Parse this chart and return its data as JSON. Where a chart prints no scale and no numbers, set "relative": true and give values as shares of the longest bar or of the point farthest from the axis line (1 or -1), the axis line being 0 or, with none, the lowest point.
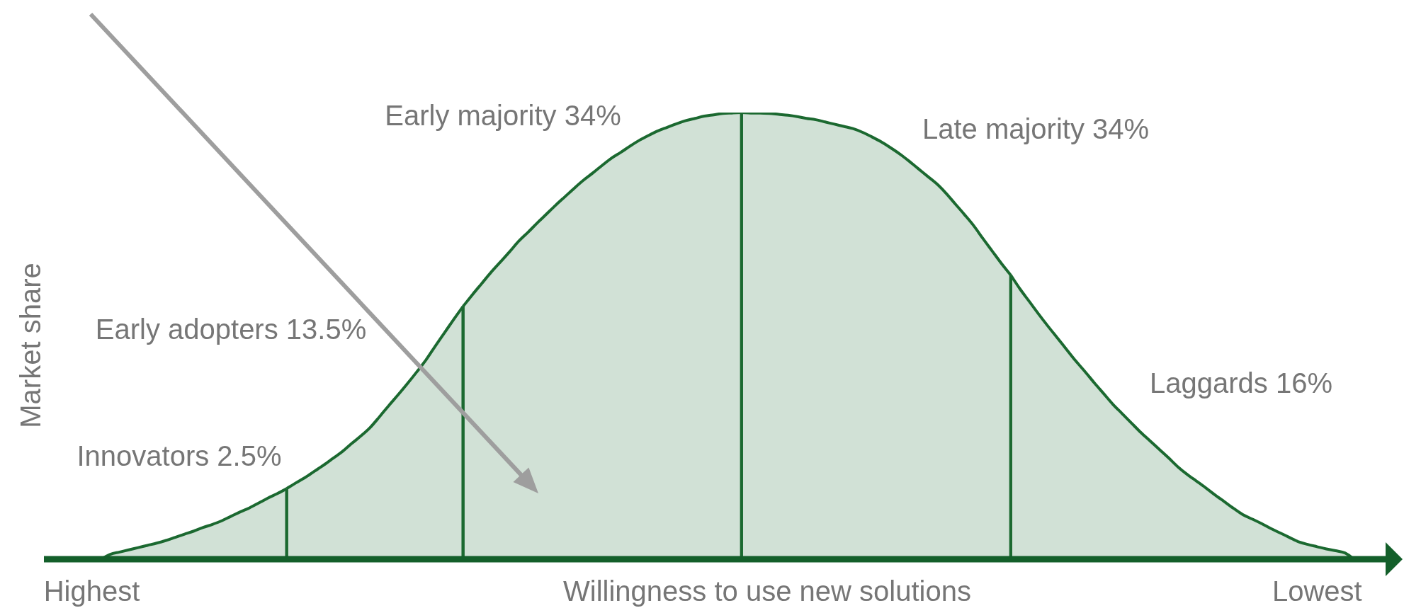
{
  "chart_data": {
    "type": "area",
    "relative": true,
    "xlabel": "Willingness to use new solutions",
    "ylabel": "Market share",
    "categories": [
      null,
      null,
      null,
      null,
      null,
      "Highest",
      null,
      null,
      null,
      null,
      null,
      null,
      null,
      null,
      null,
      null,
      null,
      null,
      null,
      null,
      null,
      null,
      null,
      null,
      null,
      null,
      null,
      null,
      null,
      null,
      null,
      null,
      null,
      null,
      null,
      null,
      null,
      null,
      null,
      null,
      null,
      null,
      null,
      null,
      null,
      null,
      null,
      null,
      null,
      null,
      null,
      null,
      null,
      null,
      null,
      null,
      null,
      null,
      null,
      null,
      null,
      null,
      null,
      null,
      null,
      null,
      null,
      null,
      null,
      null,
      null,
      null,
      null,
      null,
      null,
      null,
      null,
      null,
      null,
      null,
      null,
      null,
      null,
      null,
      null,
      null,
      null,
      null,
      null,
      null,
      null,
      null,
      null,
      null,
      null,
      null,
      null,
      null,
      null,
      null,
      null,
      null,
      null,
      null,
      null,
      null,
      null,
      null,
      null,
      null,
      null,
      null,
      null,
      null,
      null,
      null,
      null,
      null,
      null,
      null,
      null,
      null,
      null,
      null,
      null,
      null,
      null,
      null,
      null,
      null,
      null,
      null,
      null,
      null,
      null,
      null,
      null,
      "Lowest",
      null,
      null,
      null,
      null,
      null,
      null,
      null
    ],
    "series": [
      {
        "color": "#1b6930",
        "values": [
          null,
          null,
          null,
          null,
          null,
          null,
          0,
          0.011,
          0.016,
          0.021,
          0.026,
          0.031,
          0.036,
          0.042,
          0.049,
          0.056,
          0.063,
          0.071,
          0.078,
          0.086,
          0.096,
          0.106,
          0.115,
          0.126,
          0.137,
          0.147,
          0.158,
          null,
          null,
          null,
          null,
          null,
          null,
          null,
          null,
          null,
          null,
          null,
          null,
          null,
          null,
          null,
          null,
          null,
          null,
          null,
          null,
          null,
          null,
          null,
          null,
          null,
          null,
          null,
          null,
          null,
          null,
          null,
          null,
          null,
          null,
          null,
          null,
          null,
          null,
          null,
          null,
          null,
          null,
          null,
          null,
          null,
          null,
          null,
          null,
          null,
          null,
          null,
          null,
          null,
          null,
          null,
          null,
          null,
          null,
          null,
          null,
          null,
          null,
          null,
          null,
          null,
          null,
          null,
          null,
          null,
          null,
          null,
          null,
          null,
          null,
          null,
          null,
          null,
          null,
          null,
          null,
          null,
          null,
          null,
          null,
          null,
          null,
          null,
          null,
          null,
          null,
          null,
          null,
          null,
          null,
          null,
          null,
          null,
          null,
          null,
          null,
          null,
          null,
          null,
          null,
          null,
          null,
          null,
          null,
          null,
          null,
          null,
          null,
          null,
          null,
          null,
          null,
          null,
          null
        ]
      },
      {
        "color": "#1b6930",
        "values": [
          null,
          null,
          null,
          null,
          null,
          null,
          null,
          null,
          null,
          null,
          null,
          null,
          null,
          null,
          null,
          null,
          null,
          null,
          null,
          null,
          null,
          null,
          null,
          null,
          null,
          null,
          0.158,
          0.171,
          0.183,
          0.197,
          0.211,
          0.226,
          0.241,
          0.259,
          0.276,
          0.295,
          0.319,
          0.344,
          0.368,
          0.393,
          0.419,
          0.446,
          0.477,
          0.507,
          0.537,
          0.566,
          null,
          null,
          null,
          null,
          null,
          null,
          null,
          null,
          null,
          null,
          null,
          null,
          null,
          null,
          null,
          null,
          null,
          null,
          null,
          null,
          null,
          null,
          null,
          null,
          null,
          null,
          null,
          null,
          null,
          null,
          null,
          null,
          null,
          null,
          null,
          null,
          null,
          null,
          null,
          null,
          null,
          null,
          null,
          null,
          null,
          null,
          null,
          null,
          null,
          null,
          null,
          null,
          null,
          null,
          null,
          null,
          null,
          null,
          null,
          null,
          null,
          null,
          null,
          null,
          null,
          null,
          null,
          null,
          null,
          null,
          null,
          null,
          null,
          null,
          null,
          null,
          null,
          null,
          null,
          null,
          null,
          null,
          null,
          null,
          null,
          null,
          null,
          null,
          null,
          null,
          null,
          null,
          null,
          null,
          null,
          null,
          null,
          null,
          null
        ]
      },
      {
        "color": "#1b6930",
        "values": [
          null,
          null,
          null,
          null,
          null,
          null,
          null,
          null,
          null,
          null,
          null,
          null,
          null,
          null,
          null,
          null,
          null,
          null,
          null,
          null,
          null,
          null,
          null,
          null,
          null,
          null,
          null,
          null,
          null,
          null,
          null,
          null,
          null,
          null,
          null,
          null,
          null,
          null,
          null,
          null,
          null,
          null,
          null,
          null,
          null,
          0.566,
          0.592,
          0.617,
          0.642,
          0.665,
          0.688,
          0.712,
          0.732,
          0.753,
          0.773,
          0.793,
          0.812,
          0.831,
          0.849,
          0.865,
          0.882,
          0.898,
          0.911,
          0.925,
          0.938,
          0.949,
          0.959,
          0.967,
          0.975,
          0.982,
          0.987,
          0.992,
          0.995,
          0.998,
          0.999,
          1,
          null,
          null,
          null,
          null,
          null,
          null,
          null,
          null,
          null,
          null,
          null,
          null,
          null,
          null,
          null,
          null,
          null,
          null,
          null,
          null,
          null,
          null,
          null,
          null,
          null,
          null,
          null,
          null,
          null,
          null,
          null,
          null,
          null,
          null,
          null,
          null,
          null,
          null,
          null,
          null,
          null,
          null,
          null,
          null,
          null,
          null,
          null,
          null,
          null,
          null,
          null,
          null,
          null,
          null,
          null,
          null,
          null,
          null,
          null,
          null,
          null,
          null,
          null,
          null,
          null,
          null,
          null,
          null,
          null
        ]
      },
      {
        "color": "#1b6930",
        "values": [
          null,
          null,
          null,
          null,
          null,
          null,
          null,
          null,
          null,
          null,
          null,
          null,
          null,
          null,
          null,
          null,
          null,
          null,
          null,
          null,
          null,
          null,
          null,
          null,
          null,
          null,
          null,
          null,
          null,
          null,
          null,
          null,
          null,
          null,
          null,
          null,
          null,
          null,
          null,
          null,
          null,
          null,
          null,
          null,
          null,
          null,
          null,
          null,
          null,
          null,
          null,
          null,
          null,
          null,
          null,
          null,
          null,
          null,
          null,
          null,
          null,
          null,
          null,
          null,
          null,
          null,
          null,
          null,
          null,
          null,
          null,
          null,
          null,
          null,
          null,
          1,
          0.999,
          0.999,
          0.998,
          0.996,
          0.994,
          0.991,
          0.987,
          0.984,
          0.979,
          0.974,
          0.969,
          0.964,
          0.956,
          0.946,
          0.935,
          0.922,
          0.908,
          0.892,
          0.875,
          0.858,
          0.841,
          0.82,
          0.796,
          0.772,
          0.747,
          0.718,
          0.69,
          0.662,
          0.636,
          null,
          null,
          null,
          null,
          null,
          null,
          null,
          null,
          null,
          null,
          null,
          null,
          null,
          null,
          null,
          null,
          null,
          null,
          null,
          null,
          null,
          null,
          null,
          null,
          null,
          null,
          null,
          null,
          null,
          null,
          null,
          null,
          null,
          null,
          null,
          null,
          null,
          null,
          null,
          null
        ]
      },
      {
        "color": "#1b6930",
        "values": [
          null,
          null,
          null,
          null,
          null,
          null,
          null,
          null,
          null,
          null,
          null,
          null,
          null,
          null,
          null,
          null,
          null,
          null,
          null,
          null,
          null,
          null,
          null,
          null,
          null,
          null,
          null,
          null,
          null,
          null,
          null,
          null,
          null,
          null,
          null,
          null,
          null,
          null,
          null,
          null,
          null,
          null,
          null,
          null,
          null,
          null,
          null,
          null,
          null,
          null,
          null,
          null,
          null,
          null,
          null,
          null,
          null,
          null,
          null,
          null,
          null,
          null,
          null,
          null,
          null,
          null,
          null,
          null,
          null,
          null,
          null,
          null,
          null,
          null,
          null,
          null,
          null,
          null,
          null,
          null,
          null,
          null,
          null,
          null,
          null,
          null,
          null,
          null,
          null,
          null,
          null,
          null,
          null,
          null,
          null,
          null,
          null,
          null,
          null,
          null,
          null,
          null,
          null,
          null,
          0.636,
          0.605,
          0.577,
          0.549,
          0.522,
          0.496,
          0.47,
          0.444,
          0.42,
          0.395,
          0.371,
          0.347,
          0.326,
          0.305,
          0.284,
          0.265,
          0.246,
          0.227,
          0.207,
          0.19,
          0.175,
          0.16,
          0.144,
          0.129,
          0.114,
          0.1,
          0.09,
          0.08,
          0.069,
          0.059,
          0.049,
          0.039,
          0.033,
          0.028,
          0.023,
          0.019,
          0.014,
          0,
          null,
          null,
          null
        ]
      }
    ],
    "marker": "none",
    "grid": false,
    "legend": false,
    "annotations": [
      "Innovators 2.5%",
      "Early adopters 13.5%",
      "Early majority 34%",
      "Late majority 34%",
      "Laggards 16%"
    ]
  }
}
